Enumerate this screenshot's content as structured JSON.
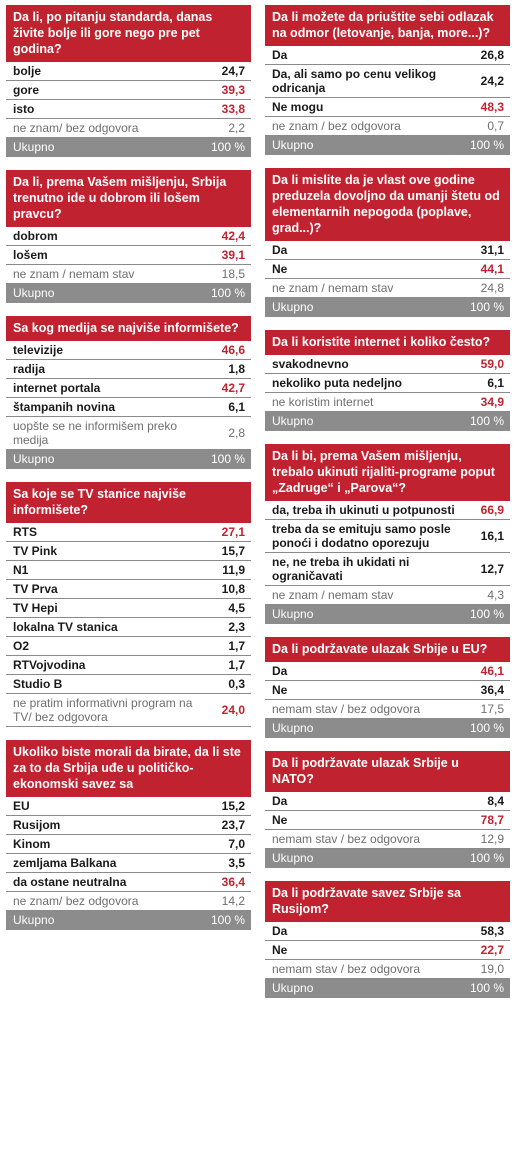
{
  "colors": {
    "accent": "#c0222f",
    "total_bg": "#8c8c8c",
    "muted": "#6e6e6e"
  },
  "total_label": "Ukupno",
  "total_value": "100 %",
  "chart_data": [
    {
      "type": "table",
      "title": "Da li, po pitanju standarda, danas živite bolje ili gore nego pre pet godina?",
      "rows": [
        {
          "label": "bolje",
          "value": "24,7",
          "style": "strong"
        },
        {
          "label": "gore",
          "value": "39,3",
          "style": "hl"
        },
        {
          "label": "isto",
          "value": "33,8",
          "style": "hl"
        },
        {
          "label": "ne znam/ bez odgovora",
          "value": "2,2",
          "style": "muted"
        }
      ]
    },
    {
      "type": "table",
      "title": "Da li, prema Vašem mišljenju, Srbija trenutno ide u dobrom ili lošem pravcu?",
      "rows": [
        {
          "label": "dobrom",
          "value": "42,4",
          "style": "hl"
        },
        {
          "label": "lošem",
          "value": "39,1",
          "style": "hl"
        },
        {
          "label": "ne znam / nemam stav",
          "value": "18,5",
          "style": "muted"
        }
      ]
    },
    {
      "type": "table",
      "title": "Sa kog medija se najviše informišete?",
      "rows": [
        {
          "label": "televizije",
          "value": "46,6",
          "style": "hl"
        },
        {
          "label": "radija",
          "value": "1,8",
          "style": "plain"
        },
        {
          "label": "internet portala",
          "value": "42,7",
          "style": "hl"
        },
        {
          "label": "štampanih novina",
          "value": "6,1",
          "style": "plain"
        },
        {
          "label": "uopšte se ne informišem preko medija",
          "value": "2,8",
          "style": "muted"
        }
      ]
    },
    {
      "type": "table",
      "title": "Sa koje se TV stanice najviše informišete?",
      "rows": [
        {
          "label": "RTS",
          "value": "27,1",
          "style": "hl"
        },
        {
          "label": "TV Pink",
          "value": "15,7",
          "style": "plain"
        },
        {
          "label": "N1",
          "value": "11,9",
          "style": "plain"
        },
        {
          "label": "TV Prva",
          "value": "10,8",
          "style": "plain"
        },
        {
          "label": "TV Hepi",
          "value": "4,5",
          "style": "plain"
        },
        {
          "label": "lokalna TV stanica",
          "value": "2,3",
          "style": "plain"
        },
        {
          "label": "O2",
          "value": "1,7",
          "style": "plain"
        },
        {
          "label": "RTVojvodina",
          "value": "1,7",
          "style": "plain"
        },
        {
          "label": "Studio B",
          "value": "0,3",
          "style": "plain"
        },
        {
          "label": "ne pratim informativni program na TV/ bez odgovora",
          "value": "24,0",
          "style": "muted-hl"
        }
      ],
      "no_total": true
    },
    {
      "type": "table",
      "title": "Ukoliko biste morali da birate, da li ste za to da Srbija uđe u političko-ekonomski savez sa",
      "rows": [
        {
          "label": "EU",
          "value": "15,2",
          "style": "plain"
        },
        {
          "label": "Rusijom",
          "value": "23,7",
          "style": "plain"
        },
        {
          "label": "Kinom",
          "value": "7,0",
          "style": "plain"
        },
        {
          "label": "zemljama Balkana",
          "value": "3,5",
          "style": "plain"
        },
        {
          "label": "da ostane neutralna",
          "value": "36,4",
          "style": "hl"
        },
        {
          "label": "ne znam/ bez odgovora",
          "value": "14,2",
          "style": "muted"
        }
      ]
    },
    {
      "type": "table",
      "title": "Da li možete da priuštite sebi odlazak na odmor (letovanje, banja, more...)?",
      "rows": [
        {
          "label": "Da",
          "value": "26,8",
          "style": "plain"
        },
        {
          "label": "Da, ali samo po cenu velikog odricanja",
          "value": "24,2",
          "style": "plain"
        },
        {
          "label": "Ne mogu",
          "value": "48,3",
          "style": "hl"
        },
        {
          "label": "ne znam / bez odgovora",
          "value": "0,7",
          "style": "muted"
        }
      ]
    },
    {
      "type": "table",
      "title": "Da li mislite da je vlast ove godine preduzela dovoljno da umanji štetu od elementarnih nepogoda (poplave, grad...)?",
      "rows": [
        {
          "label": "Da",
          "value": "31,1",
          "style": "plain"
        },
        {
          "label": "Ne",
          "value": "44,1",
          "style": "hl"
        },
        {
          "label": "ne znam / nemam stav",
          "value": "24,8",
          "style": "muted"
        }
      ]
    },
    {
      "type": "table",
      "title": "Da li koristite internet i koliko često?",
      "rows": [
        {
          "label": "svakodnevno",
          "value": "59,0",
          "style": "hl"
        },
        {
          "label": "nekoliko puta nedeljno",
          "value": "6,1",
          "style": "plain"
        },
        {
          "label": "ne koristim internet",
          "value": "34,9",
          "style": "muted-hl"
        }
      ]
    },
    {
      "type": "table",
      "title": "Da li bi, prema Vašem mišljenju, trebalo ukinuti rijaliti-programe poput „Zadruge“ i „Parova“?",
      "rows": [
        {
          "label": "da, treba ih ukinuti u potpunosti",
          "value": "66,9",
          "style": "hl"
        },
        {
          "label": "treba da se emituju samo posle ponoći i dodatno oporezuju",
          "value": "16,1",
          "style": "plain"
        },
        {
          "label": "ne, ne treba ih ukidati ni ograničavati",
          "value": "12,7",
          "style": "plain"
        },
        {
          "label": "ne znam / nemam stav",
          "value": "4,3",
          "style": "muted"
        }
      ]
    },
    {
      "type": "table",
      "title": "Da li podržavate ulazak Srbije u EU?",
      "rows": [
        {
          "label": "Da",
          "value": "46,1",
          "style": "hl"
        },
        {
          "label": "Ne",
          "value": "36,4",
          "style": "plain"
        },
        {
          "label": "nemam stav / bez odgovora",
          "value": "17,5",
          "style": "muted"
        }
      ]
    },
    {
      "type": "table",
      "title": "Da li podržavate ulazak Srbije u NATO?",
      "rows": [
        {
          "label": "Da",
          "value": "8,4",
          "style": "plain"
        },
        {
          "label": "Ne",
          "value": "78,7",
          "style": "hl"
        },
        {
          "label": "nemam stav / bez odgovora",
          "value": "12,9",
          "style": "muted"
        }
      ]
    },
    {
      "type": "table",
      "title": "Da li podržavate savez Srbije sa Rusijom?",
      "rows": [
        {
          "label": "Da",
          "value": "58,3",
          "style": "plain"
        },
        {
          "label": "Ne",
          "value": "22,7",
          "style": "hl"
        },
        {
          "label": "nemam stav / bez odgovora",
          "value": "19,0",
          "style": "muted"
        }
      ]
    }
  ]
}
